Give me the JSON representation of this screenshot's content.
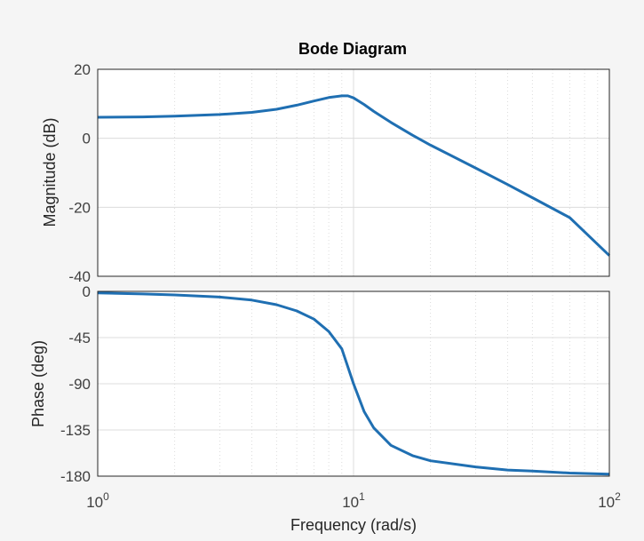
{
  "chart_data": {
    "type": "line",
    "title": "Bode Diagram",
    "xlabel": "Frequency  (rad/s)",
    "x_scale": "log",
    "xlim": [
      1,
      100
    ],
    "x_ticks": [
      {
        "base": "10",
        "exp": "0"
      },
      {
        "base": "10",
        "exp": "1"
      },
      {
        "base": "10",
        "exp": "2"
      }
    ],
    "grid": true,
    "color": "#1f6fb2",
    "panels": [
      {
        "name": "magnitude",
        "ylabel": "Magnitude (dB)",
        "ylim": [
          -40,
          20
        ],
        "yticks": [
          "20",
          "0",
          "-20",
          "-40"
        ],
        "yticks_values": [
          20,
          0,
          -20,
          -40
        ],
        "series": [
          {
            "x": [
              1,
              1.5,
              2,
              3,
              4,
              5,
              6,
              7,
              8,
              9,
              9.5,
              10,
              11,
              12,
              14,
              17,
              20,
              30,
              40,
              50,
              70,
              100
            ],
            "y": [
              6.1,
              6.2,
              6.4,
              6.9,
              7.5,
              8.4,
              9.6,
              10.8,
              11.8,
              12.3,
              12.3,
              11.7,
              9.8,
              7.8,
              4.6,
              0.9,
              -2.0,
              -8.6,
              -13.4,
              -17.2,
              -23.0,
              -34.0
            ]
          }
        ]
      },
      {
        "name": "phase",
        "ylabel": "Phase (deg)",
        "ylim": [
          -180,
          0
        ],
        "yticks": [
          "0",
          "-45",
          "-90",
          "-135",
          "-180"
        ],
        "yticks_values": [
          0,
          -45,
          -90,
          -135,
          -180
        ],
        "series": [
          {
            "x": [
              1,
              1.5,
              2,
              3,
              4,
              5,
              6,
              7,
              8,
              9,
              10,
              11,
              12,
              14,
              17,
              20,
              30,
              40,
              50,
              70,
              100
            ],
            "y": [
              -1.5,
              -2.5,
              -3.5,
              -5.5,
              -8.5,
              -13,
              -19,
              -27,
              -39,
              -56,
              -90,
              -117,
              -133,
              -150,
              -160,
              -165,
              -171,
              -174,
              -175,
              -177,
              -178
            ]
          }
        ]
      }
    ]
  }
}
